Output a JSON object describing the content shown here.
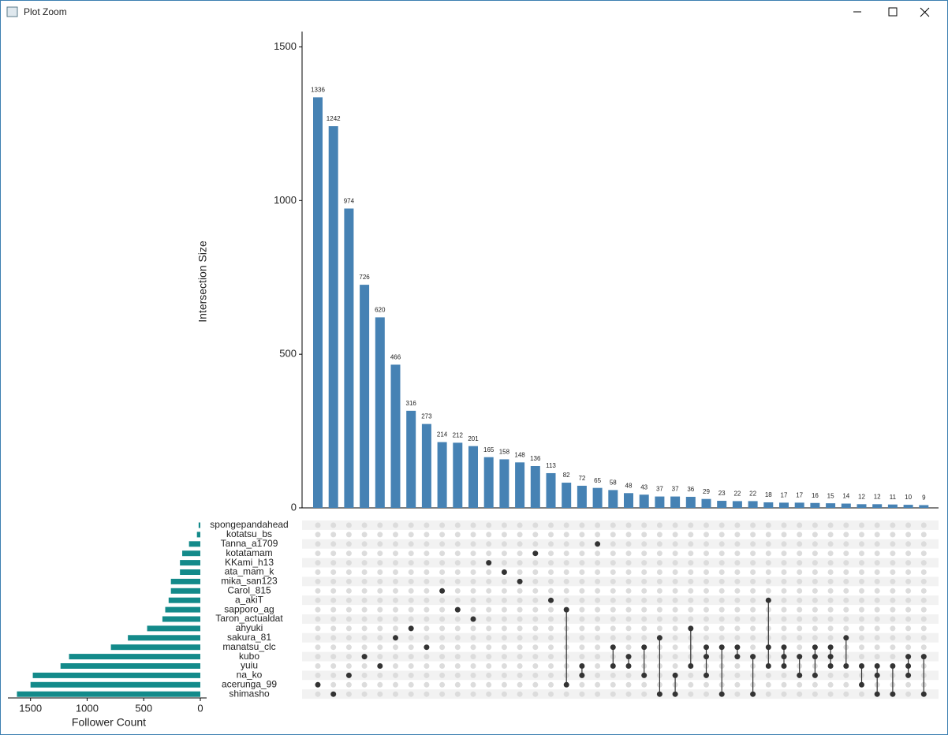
{
  "window": {
    "title": "Plot Zoom"
  },
  "chart_data": {
    "type": "upset",
    "ylabel": "Intersection Size",
    "xlabel": "Follower Count",
    "ylim": [
      0,
      1550
    ],
    "yticks": [
      0,
      500,
      1000,
      1500
    ],
    "xlim": [
      1700,
      0
    ],
    "xticks": [
      1500,
      1000,
      500,
      0
    ],
    "bar_color": "#4682b4",
    "set_color": "#138a8a",
    "values": [
      1336,
      1242,
      974,
      726,
      620,
      466,
      316,
      273,
      214,
      212,
      201,
      165,
      158,
      148,
      136,
      113,
      82,
      72,
      65,
      58,
      48,
      43,
      37,
      37,
      36,
      29,
      23,
      22,
      22,
      18,
      17,
      17,
      16,
      15,
      14,
      12,
      12,
      11,
      10,
      9
    ],
    "memberships": [
      [
        17
      ],
      [
        18
      ],
      [
        16
      ],
      [
        14
      ],
      [
        15
      ],
      [
        12
      ],
      [
        11
      ],
      [
        13
      ],
      [
        7
      ],
      [
        9
      ],
      [
        10
      ],
      [
        4
      ],
      [
        5
      ],
      [
        6
      ],
      [
        3
      ],
      [
        8
      ],
      [
        9,
        17
      ],
      [
        15,
        16
      ],
      [
        2
      ],
      [
        13,
        15
      ],
      [
        14,
        15
      ],
      [
        13,
        16
      ],
      [
        12,
        18
      ],
      [
        16,
        18
      ],
      [
        11,
        15
      ],
      [
        13,
        14,
        16
      ],
      [
        13,
        18
      ],
      [
        13,
        14
      ],
      [
        14,
        18
      ],
      [
        8,
        13,
        15
      ],
      [
        13,
        14,
        15
      ],
      [
        14,
        16
      ],
      [
        13,
        14,
        16
      ],
      [
        13,
        14,
        15
      ],
      [
        12,
        15
      ],
      [
        15,
        17
      ],
      [
        15,
        16,
        18
      ],
      [
        15,
        18
      ],
      [
        14,
        15,
        16
      ],
      [
        14,
        18
      ]
    ],
    "sets": [
      "spongepandahead",
      "kotatsu_bs",
      "Tanna_a1709",
      "kotatamam",
      "KKami_h13",
      "ata_mam_k",
      "mika_san123",
      "Carol_815",
      "a_akiT",
      "sapporo_ag",
      "Taron_actualdat",
      "ahyuki",
      "sakura_81",
      "manatsu_clc",
      "kubo",
      "yuiu",
      "na_ko",
      "acerunga_99",
      "shimasho"
    ],
    "set_values": [
      15,
      30,
      100,
      160,
      180,
      180,
      260,
      260,
      280,
      310,
      335,
      470,
      640,
      790,
      1160,
      1235,
      1480,
      1500,
      1620
    ]
  }
}
